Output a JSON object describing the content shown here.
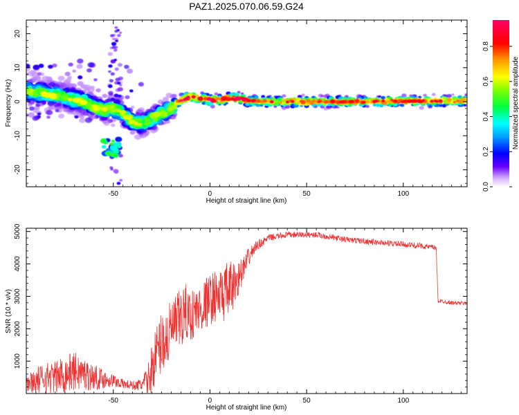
{
  "title": "PAZ1.2025.070.06.59.G24",
  "chart_data": [
    {
      "type": "heatmap",
      "xlabel": "Height of straight line (km)",
      "ylabel": "Frequency (Hz)",
      "xlim": [
        -95,
        133
      ],
      "ylim": [
        -25,
        24
      ],
      "xticks": [
        -50,
        0,
        50,
        100
      ],
      "yticks": [
        -20,
        -10,
        0,
        10,
        20
      ],
      "colorbar": {
        "label": "Normalized spectral amplitude",
        "range": [
          0,
          0.95
        ],
        "ticks": [
          "0.0",
          "0.2",
          "0.4",
          "0.6",
          "0.8"
        ],
        "colormap": "rainbow"
      },
      "ridge": {
        "x": [
          -93,
          -88,
          -82,
          -76,
          -70,
          -65,
          -60,
          -55,
          -50,
          -45,
          -40,
          -35,
          -30,
          -25,
          -20,
          -15,
          -10,
          -5,
          0,
          5,
          10,
          15,
          20,
          30,
          50,
          80,
          110,
          133
        ],
        "y": [
          3,
          2.5,
          2,
          1.5,
          0.5,
          0,
          -1.5,
          -2.5,
          -2,
          -3.5,
          -6,
          -6.5,
          -5,
          -3.5,
          -2,
          0.5,
          1.5,
          1,
          0.5,
          0.5,
          1,
          1,
          0.3,
          0,
          0,
          0,
          0.2,
          0.3
        ]
      },
      "grid": false
    },
    {
      "type": "line",
      "xlabel": "Height of straight line (km)",
      "ylabel": "SNR (10 * v/v)",
      "xlim": [
        -95,
        133
      ],
      "ylim": [
        0,
        5100
      ],
      "xticks": [
        -50,
        0,
        50,
        100
      ],
      "yticks": [
        1000,
        2000,
        3000,
        4000,
        5000
      ],
      "color": "#ee3333",
      "envelope": {
        "x": [
          -95,
          -90,
          -85,
          -80,
          -75,
          -70,
          -65,
          -60,
          -55,
          -50,
          -45,
          -40,
          -38,
          -35,
          -32,
          -30,
          -28,
          -25,
          -22,
          -20,
          -18,
          -15,
          -12,
          -10,
          -8,
          -5,
          -2,
          0,
          2,
          5,
          8,
          10,
          12,
          15,
          18,
          20,
          22,
          25,
          28,
          30,
          35,
          40,
          45,
          50,
          55,
          60,
          70,
          80,
          90,
          100,
          110,
          116,
          117,
          118,
          120,
          125,
          133
        ],
        "mean": [
          300,
          400,
          500,
          500,
          600,
          700,
          600,
          500,
          450,
          400,
          300,
          250,
          250,
          280,
          400,
          800,
          1200,
          1600,
          1700,
          2000,
          2100,
          2300,
          2500,
          2400,
          2500,
          2600,
          2800,
          2900,
          3000,
          3000,
          3100,
          3200,
          3300,
          3600,
          3900,
          4200,
          4400,
          4600,
          4700,
          4800,
          4850,
          4900,
          4900,
          4900,
          4900,
          4850,
          4750,
          4700,
          4650,
          4600,
          4550,
          4500,
          4500,
          2850,
          2850,
          2800,
          2780
        ],
        "spread": [
          300,
          400,
          500,
          500,
          600,
          600,
          500,
          400,
          300,
          200,
          150,
          150,
          150,
          250,
          500,
          800,
          900,
          1000,
          1000,
          900,
          900,
          1000,
          900,
          800,
          800,
          800,
          800,
          800,
          800,
          800,
          900,
          900,
          800,
          500,
          400,
          300,
          200,
          150,
          120,
          100,
          100,
          90,
          90,
          90,
          90,
          90,
          90,
          90,
          90,
          90,
          90,
          90,
          90,
          60,
          60,
          60,
          60
        ]
      },
      "grid": false
    }
  ]
}
